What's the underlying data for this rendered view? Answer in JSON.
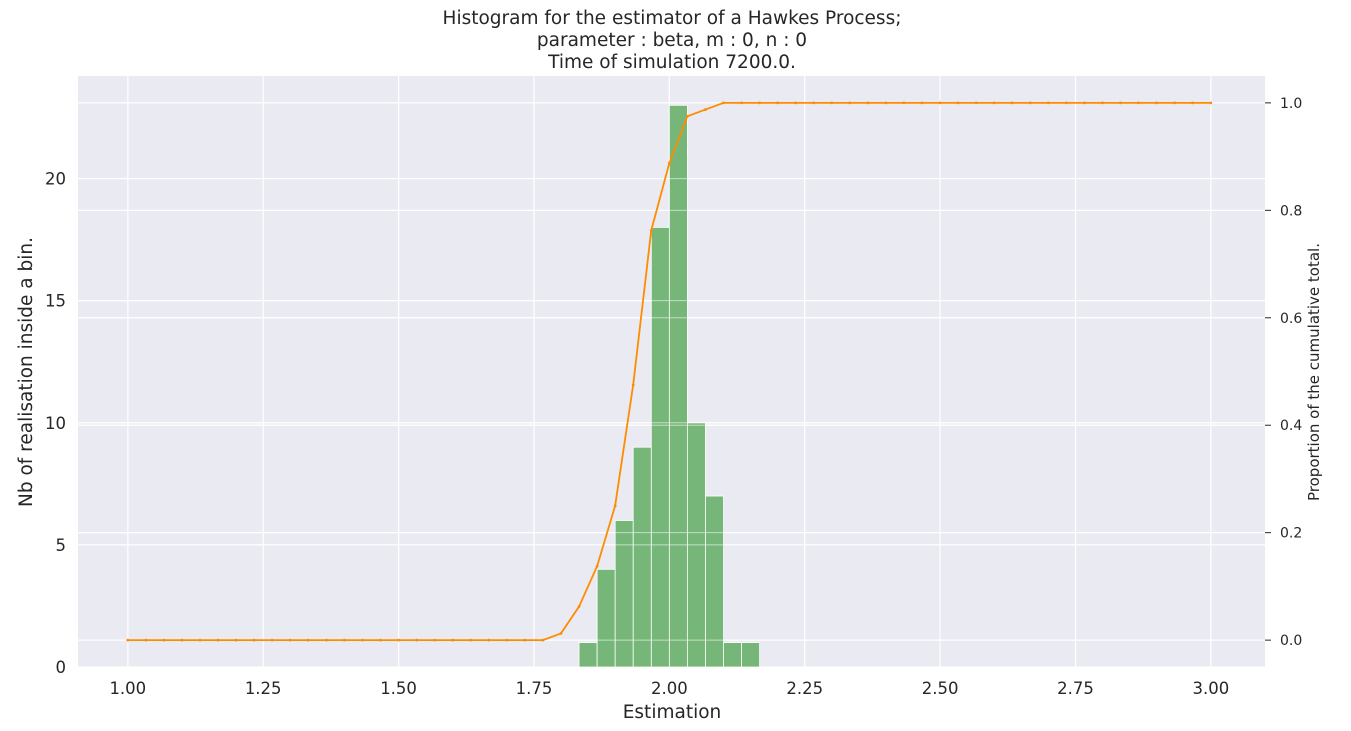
{
  "chart_data": {
    "type": "bar",
    "title": [
      "Histogram for the estimator of a Hawkes Process;",
      "parameter : beta, m : 0, n : 0",
      "Time of simulation 7200.0."
    ],
    "xlabel": "Estimation",
    "ylabel": "Nb of realisation inside a bin.",
    "y2label": "Proportion of the cumulative total.",
    "xlim": [
      0.908,
      3.1
    ],
    "ylim": [
      0,
      24.2
    ],
    "y2lim": [
      -0.05,
      1.05
    ],
    "xticks": [
      1.0,
      1.25,
      1.5,
      1.75,
      2.0,
      2.25,
      2.5,
      2.75,
      3.0
    ],
    "xtick_labels": [
      "1.00",
      "1.25",
      "1.50",
      "1.75",
      "2.00",
      "2.25",
      "2.50",
      "2.75",
      "3.00"
    ],
    "yticks": [
      0,
      5,
      10,
      15,
      20
    ],
    "ytick_labels": [
      "0",
      "5",
      "10",
      "15",
      "20"
    ],
    "y2ticks": [
      0.0,
      0.2,
      0.4,
      0.6,
      0.8,
      1.0
    ],
    "y2tick_labels": [
      "0.0",
      "0.2",
      "0.4",
      "0.6",
      "0.8",
      "1.0"
    ],
    "grid": true,
    "histogram": {
      "name": "histogram",
      "color": "#6ab06c",
      "bin_width": 0.0334,
      "bin_starts": [
        1.8333,
        1.8667,
        1.9,
        1.9333,
        1.9667,
        2.0,
        2.0333,
        2.0667,
        2.1,
        2.1333
      ],
      "counts": [
        1,
        4,
        6,
        9,
        18,
        23,
        10,
        7,
        1,
        1
      ]
    },
    "cumulative": {
      "name": "cumulative",
      "color": "#ff8c00",
      "x_start": 1.0,
      "x_step": 0.03333,
      "y": [
        0,
        0,
        0,
        0,
        0,
        0,
        0,
        0,
        0,
        0,
        0,
        0,
        0,
        0,
        0,
        0,
        0,
        0,
        0,
        0,
        0,
        0,
        0,
        0,
        0.0125,
        0.0625,
        0.1375,
        0.25,
        0.475,
        0.7625,
        0.8875,
        0.975,
        0.9875,
        1.0,
        1.0,
        1.0,
        1.0,
        1.0,
        1.0,
        1.0,
        1.0,
        1.0,
        1.0,
        1.0,
        1.0,
        1.0,
        1.0,
        1.0,
        1.0,
        1.0,
        1.0,
        1.0,
        1.0,
        1.0,
        1.0,
        1.0,
        1.0,
        1.0,
        1.0,
        1.0,
        1.0
      ]
    }
  }
}
